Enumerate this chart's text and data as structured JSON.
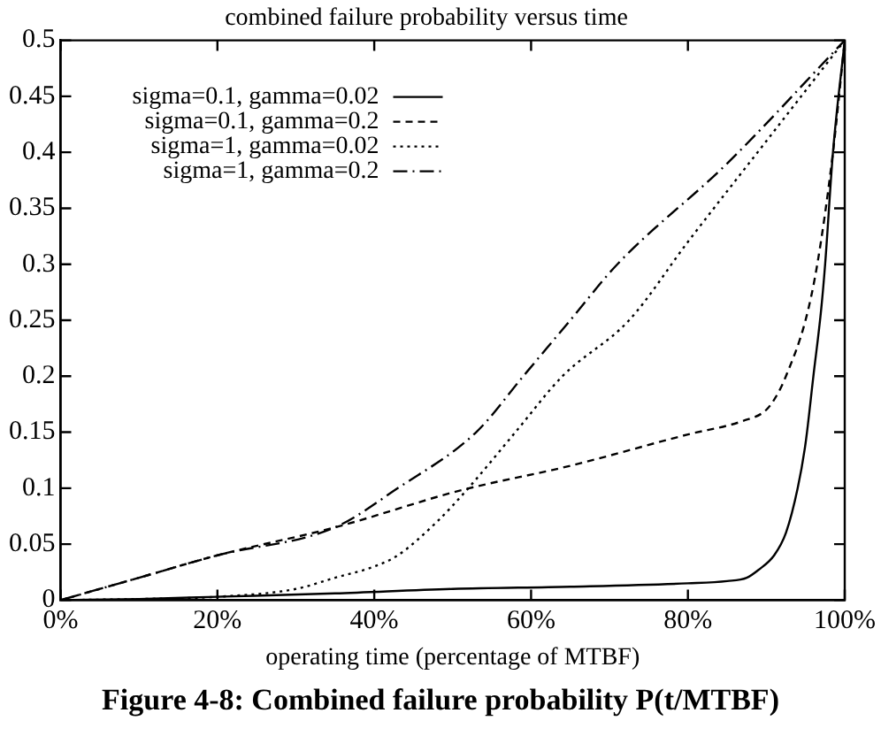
{
  "chart_data": {
    "type": "line",
    "title": "combined failure probability versus time",
    "xlabel": "operating time (percentage of MTBF)",
    "annotations": [
      "Figure 4-8: Combined failure probability P(t/MTBF)"
    ],
    "xlim": [
      0,
      100
    ],
    "xticks": [
      {
        "value": 0,
        "label": "0%"
      },
      {
        "value": 20,
        "label": "20%"
      },
      {
        "value": 40,
        "label": "40%"
      },
      {
        "value": 60,
        "label": "60%"
      },
      {
        "value": 80,
        "label": "80%"
      },
      {
        "value": 100,
        "label": "100%"
      }
    ],
    "ylim": [
      0,
      0.5
    ],
    "yticks": [
      0,
      0.05,
      0.1,
      0.15,
      0.2,
      0.25,
      0.3,
      0.35,
      0.4,
      0.45,
      0.5
    ],
    "grid": false,
    "legend": "top left",
    "marker": "none",
    "series": [
      {
        "name": "sigma=0.1, gamma=0.02",
        "color": "#000000",
        "line_style": "solid",
        "x": [
          0,
          10,
          20,
          35,
          50,
          65,
          80,
          85,
          87.5,
          89,
          91,
          92.5,
          94,
          95,
          96,
          97,
          97.5,
          98.5,
          100
        ],
        "values": [
          0,
          0.001,
          0.003,
          0.006,
          0.01,
          0.012,
          0.015,
          0.017,
          0.02,
          0.027,
          0.04,
          0.06,
          0.1,
          0.14,
          0.2,
          0.26,
          0.3,
          0.4,
          0.5
        ]
      },
      {
        "name": "sigma=0.1, gamma=0.2",
        "color": "#000000",
        "line_style": "dashed",
        "x": [
          0,
          10,
          20,
          35,
          51,
          65,
          80,
          87,
          90,
          91.5,
          92.5,
          95,
          96.5,
          98.5,
          100
        ],
        "values": [
          0,
          0.02,
          0.04,
          0.065,
          0.098,
          0.12,
          0.148,
          0.16,
          0.17,
          0.185,
          0.2,
          0.25,
          0.3,
          0.4,
          0.5
        ]
      },
      {
        "name": "sigma=1, gamma=0.02",
        "color": "#000000",
        "line_style": "dotted",
        "x": [
          0,
          10,
          20,
          30,
          35,
          40,
          43,
          48,
          52,
          58,
          64,
          72.5,
          80,
          90,
          100
        ],
        "values": [
          0,
          0.001,
          0.003,
          0.01,
          0.02,
          0.03,
          0.04,
          0.07,
          0.1,
          0.15,
          0.2,
          0.25,
          0.32,
          0.41,
          0.5
        ]
      },
      {
        "name": "sigma=1, gamma=0.2",
        "color": "#000000",
        "line_style": "dashdot",
        "x": [
          0,
          10,
          20,
          35,
          43,
          53,
          59,
          65,
          71,
          85,
          100
        ],
        "values": [
          0,
          0.02,
          0.04,
          0.065,
          0.1,
          0.15,
          0.2,
          0.25,
          0.3,
          0.39,
          0.5
        ]
      }
    ]
  }
}
